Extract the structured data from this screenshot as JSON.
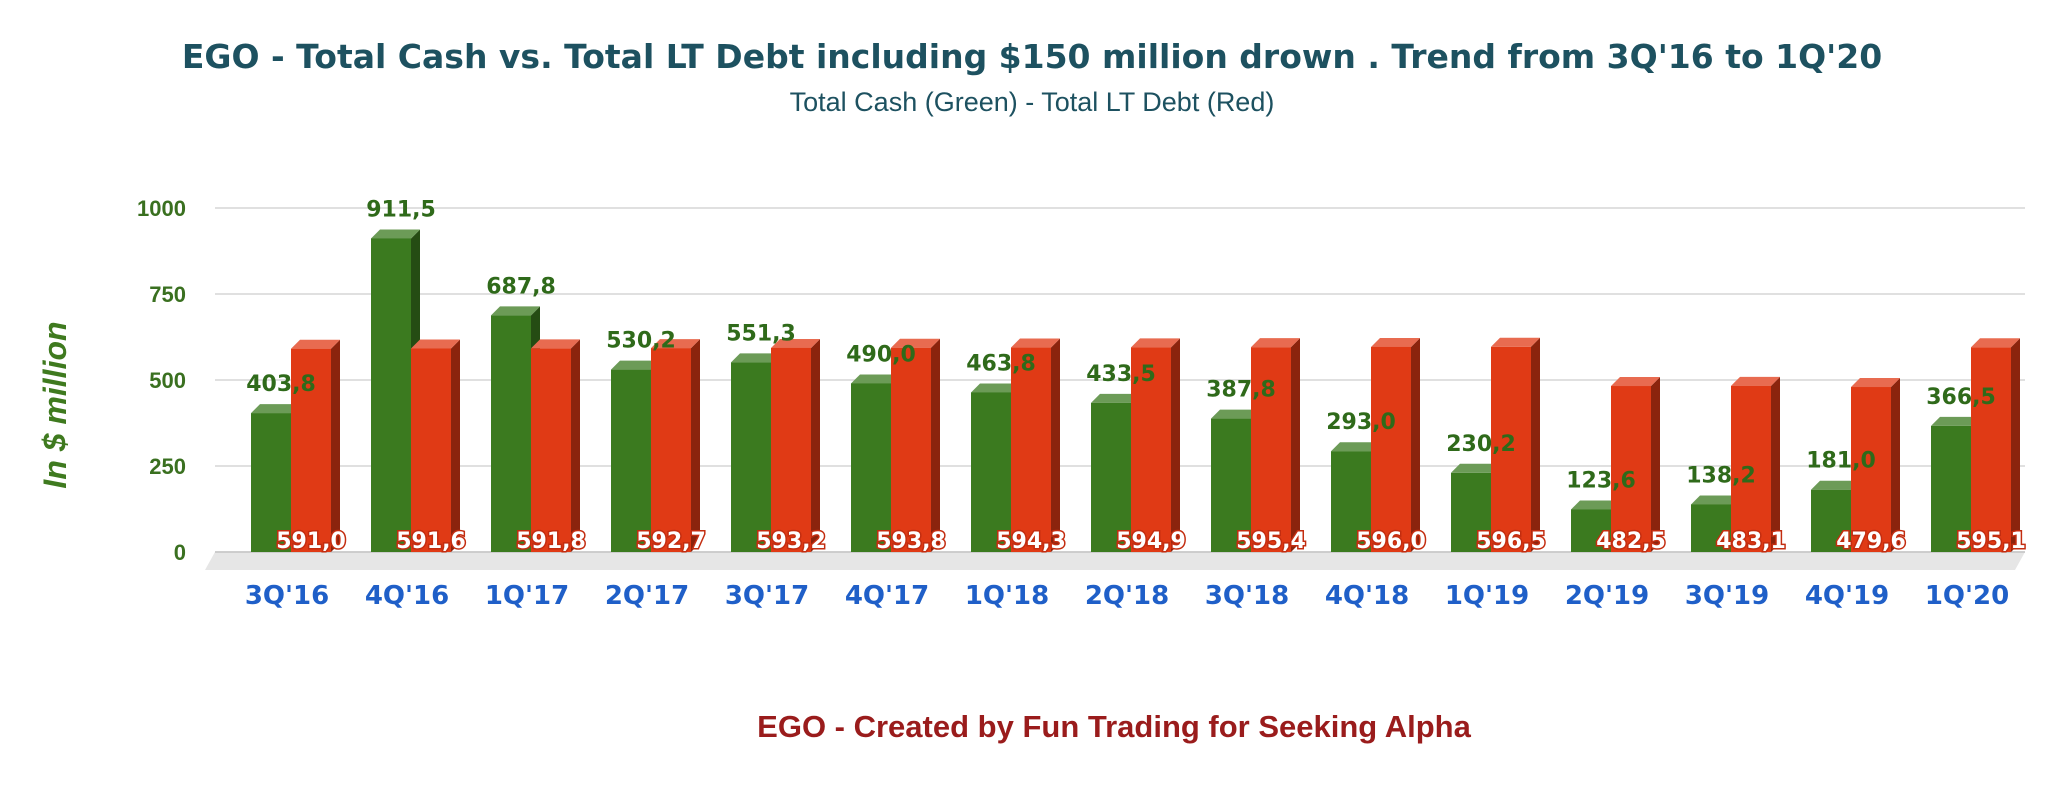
{
  "chart_data": {
    "type": "bar",
    "title": "EGO - Total Cash vs. Total LT Debt including $150 million drown . Trend from 3Q'16 to 1Q'20",
    "subtitle": "Total Cash (Green) -  Total LT Debt (Red)",
    "ylabel": "In $ million",
    "footer": "EGO - Created by Fun Trading for Seeking Alpha",
    "ylim": [
      0,
      1000
    ],
    "yticks": [
      0,
      250,
      500,
      750,
      1000
    ],
    "grid": true,
    "categories": [
      "3Q'16",
      "4Q'16",
      "1Q'17",
      "2Q'17",
      "3Q'17",
      "4Q'17",
      "1Q'18",
      "2Q'18",
      "3Q'18",
      "4Q'18",
      "1Q'19",
      "2Q'19",
      "3Q'19",
      "4Q'19",
      "1Q'20"
    ],
    "series": [
      {
        "color": "#3b7a1f",
        "values": [
          403.8,
          911.5,
          687.8,
          530.2,
          551.3,
          490.0,
          463.8,
          433.5,
          387.8,
          293.0,
          230.2,
          123.6,
          138.2,
          181.0,
          366.5
        ],
        "labels": [
          "403,8",
          "911,5",
          "687,8",
          "530,2",
          "551,3",
          "490,0",
          "463,8",
          "433,5",
          "387,8",
          "293,0",
          "230,2",
          "123,6",
          "138,2",
          "181,0",
          "366,5"
        ]
      },
      {
        "color": "#e03a15",
        "values": [
          591.0,
          591.6,
          591.8,
          592.7,
          593.2,
          593.8,
          594.3,
          594.9,
          595.4,
          596.0,
          596.5,
          482.5,
          483.1,
          479.6,
          595.1
        ],
        "labels": [
          "591,0",
          "591,6",
          "591,8",
          "592,7",
          "593,2",
          "593,8",
          "594,3",
          "594,9",
          "595,4",
          "596,0",
          "596,5",
          "482,5",
          "483,1",
          "479,6",
          "595,1"
        ]
      }
    ]
  }
}
